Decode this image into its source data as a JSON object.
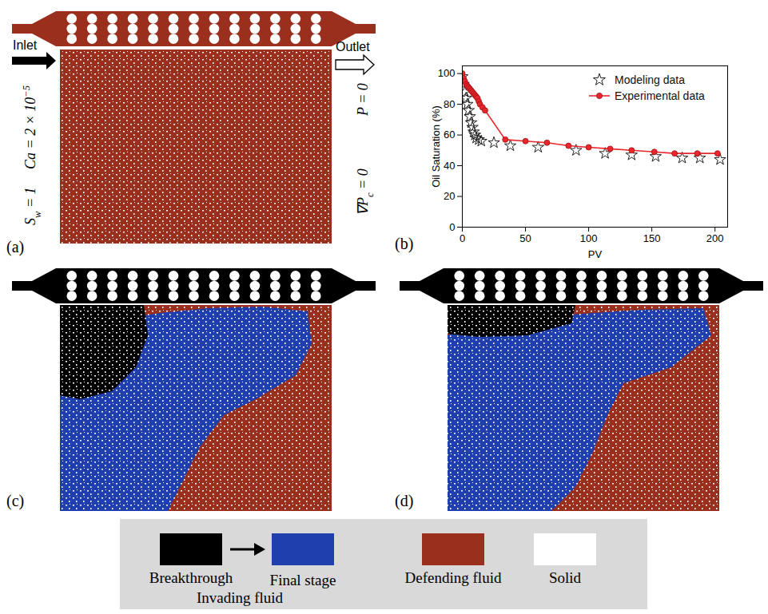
{
  "figure": {
    "panel_labels": [
      "(a)",
      "(b)",
      "(c)",
      "(d)"
    ],
    "panel_a": {
      "inlet": "Inlet",
      "outlet": "Outlet",
      "left_conditions": [
        {
          "base": "S",
          "sub": "w",
          "rest": " = 1"
        },
        {
          "base": "Ca = 2 × 10",
          "sup": "−5"
        }
      ],
      "right_conditions": [
        {
          "base": "P = 0"
        },
        {
          "base": "∇P",
          "sub": "c",
          "rest": " = 0"
        }
      ]
    },
    "legend": {
      "invading": {
        "title": "Invading fluid",
        "from": "Breakthrough",
        "to": "Final stage",
        "from_color": "#000000",
        "to_color": "#1f3fae"
      },
      "defending": {
        "label": "Defending fluid",
        "color": "#9b2f1e"
      },
      "solid": {
        "label": "Solid",
        "color": "#ffffff"
      }
    }
  },
  "chart_data": {
    "type": "line",
    "x_label": "PV",
    "y_label": "Oil Saturation (%)",
    "xlim": [
      0,
      210
    ],
    "xticks": [
      0,
      50,
      100,
      150,
      200
    ],
    "ylim": [
      0,
      105
    ],
    "yticks": [
      0,
      20,
      40,
      60,
      80,
      100
    ],
    "legend": "top-right",
    "series": [
      {
        "name": "Modeling data",
        "type": "scatter",
        "marker": "star",
        "color": "#222222",
        "x": [
          0,
          1,
          2,
          3,
          4,
          5,
          6,
          7,
          8,
          9,
          10,
          11,
          13,
          15,
          25,
          38,
          60,
          90,
          113,
          134,
          153,
          174,
          188,
          204
        ],
        "values": [
          98,
          93,
          88,
          84,
          80,
          76,
          72,
          68,
          65,
          62,
          60,
          58,
          57,
          56,
          55,
          53,
          52,
          50,
          48,
          47,
          46,
          45,
          45,
          44
        ]
      },
      {
        "name": "Experimental data",
        "type": "line",
        "marker": "circle",
        "line_style": "solid",
        "color": "#e8262b",
        "x": [
          0,
          1,
          2,
          3,
          4,
          5,
          6,
          7,
          8,
          9,
          10,
          11,
          12,
          13,
          14,
          16,
          18,
          34,
          50,
          67,
          84,
          100,
          117,
          134,
          152,
          168,
          186,
          202
        ],
        "values": [
          100,
          97,
          95,
          93,
          92,
          91,
          90,
          89,
          88,
          87,
          86,
          85,
          84,
          82,
          80,
          78,
          76,
          57,
          56,
          55,
          53,
          52,
          51,
          50,
          49,
          48,
          48,
          48
        ]
      }
    ]
  }
}
